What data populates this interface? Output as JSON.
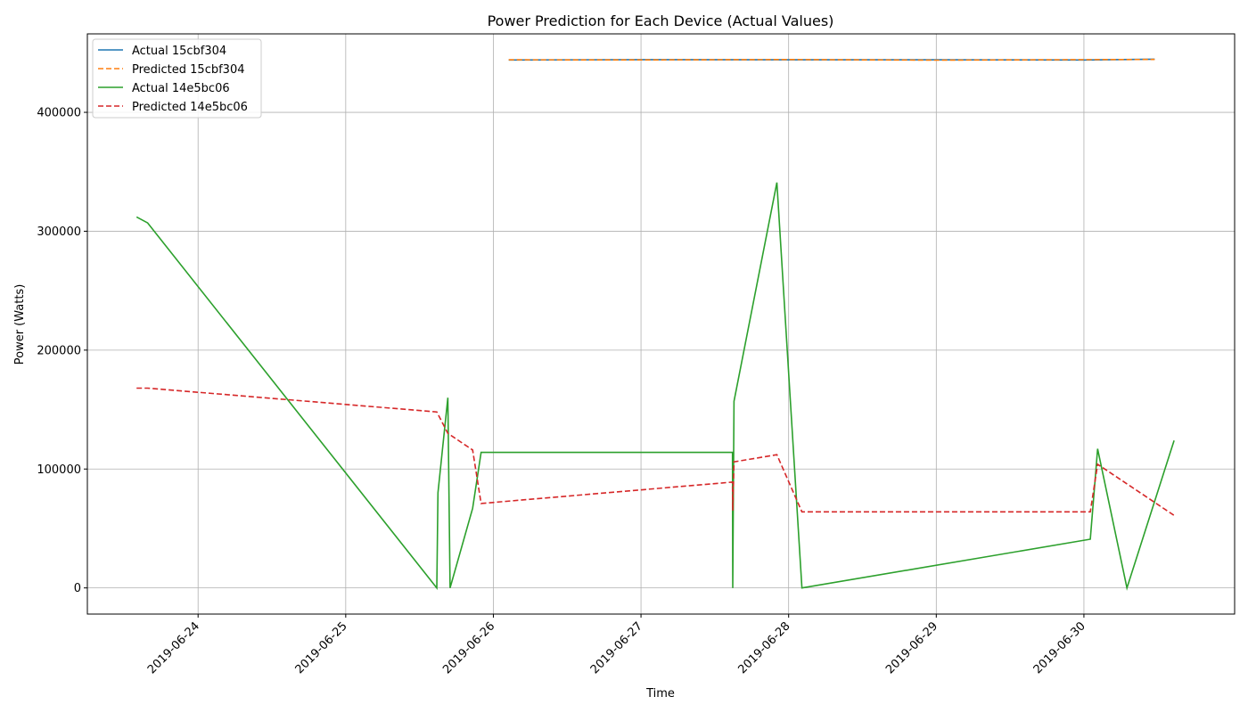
{
  "chart_data": {
    "type": "line",
    "title": "Power Prediction for Each Device (Actual Values)",
    "xlabel": "Time",
    "ylabel": "Power (Watts)",
    "x_axis_type": "datetime",
    "xlim": [
      "2019-06-23 06:00",
      "2019-07-01 00:30"
    ],
    "ylim": [
      -22000,
      466000
    ],
    "x_ticks": [
      "2019-06-24",
      "2019-06-25",
      "2019-06-26",
      "2019-06-27",
      "2019-06-28",
      "2019-06-29",
      "2019-06-30"
    ],
    "y_ticks": [
      0,
      100000,
      200000,
      300000,
      400000
    ],
    "grid": true,
    "legend_position": "upper-left",
    "series": [
      {
        "name": "Actual 15cbf304",
        "color": "#1f77b4",
        "style": "solid",
        "x": [
          "2019-06-26 02:30",
          "2019-06-27 00:00",
          "2019-06-28 00:00",
          "2019-06-29 00:00",
          "2019-06-30 00:00",
          "2019-06-30 11:30"
        ],
        "y": [
          444000,
          444300,
          444200,
          444200,
          444000,
          444700
        ]
      },
      {
        "name": "Predicted 15cbf304",
        "color": "#ff7f0e",
        "style": "dashed",
        "x": [
          "2019-06-26 02:30",
          "2019-06-27 00:00",
          "2019-06-28 00:00",
          "2019-06-29 00:00",
          "2019-06-30 00:00",
          "2019-06-30 11:30"
        ],
        "y": [
          444200,
          444100,
          444400,
          443900,
          444300,
          444500
        ]
      },
      {
        "name": "Actual 14e5bc06",
        "color": "#2ca02c",
        "style": "solid",
        "x": [
          "2019-06-23 14:00",
          "2019-06-23 15:48",
          "2019-06-25 14:48",
          "2019-06-25 15:00",
          "2019-06-25 16:36",
          "2019-06-25 16:58",
          "2019-06-25 20:38",
          "2019-06-25 22:00",
          "2019-06-27 14:52",
          "2019-06-27 14:55",
          "2019-06-27 15:07",
          "2019-06-27 22:05",
          "2019-06-28 02:10",
          "2019-06-30 01:02",
          "2019-06-30 02:14",
          "2019-06-30 07:00",
          "2019-06-30 14:40"
        ],
        "y": [
          312000,
          307000,
          0,
          80000,
          160000,
          0,
          67000,
          114000,
          114000,
          0,
          157000,
          341000,
          0,
          41000,
          117000,
          0,
          124000
        ]
      },
      {
        "name": "Predicted 14e5bc06",
        "color": "#d62728",
        "style": "dashed",
        "x": [
          "2019-06-23 14:00",
          "2019-06-23 15:48",
          "2019-06-25 14:48",
          "2019-06-25 16:36",
          "2019-06-25 20:38",
          "2019-06-25 22:00",
          "2019-06-27 14:52",
          "2019-06-27 14:55",
          "2019-06-27 15:07",
          "2019-06-27 22:05",
          "2019-06-28 02:10",
          "2019-06-30 01:02",
          "2019-06-30 02:14",
          "2019-06-30 14:40"
        ],
        "y": [
          168000,
          168000,
          148000,
          130000,
          116000,
          71000,
          89000,
          65000,
          106000,
          112000,
          64000,
          64000,
          104000,
          61000
        ]
      }
    ]
  }
}
